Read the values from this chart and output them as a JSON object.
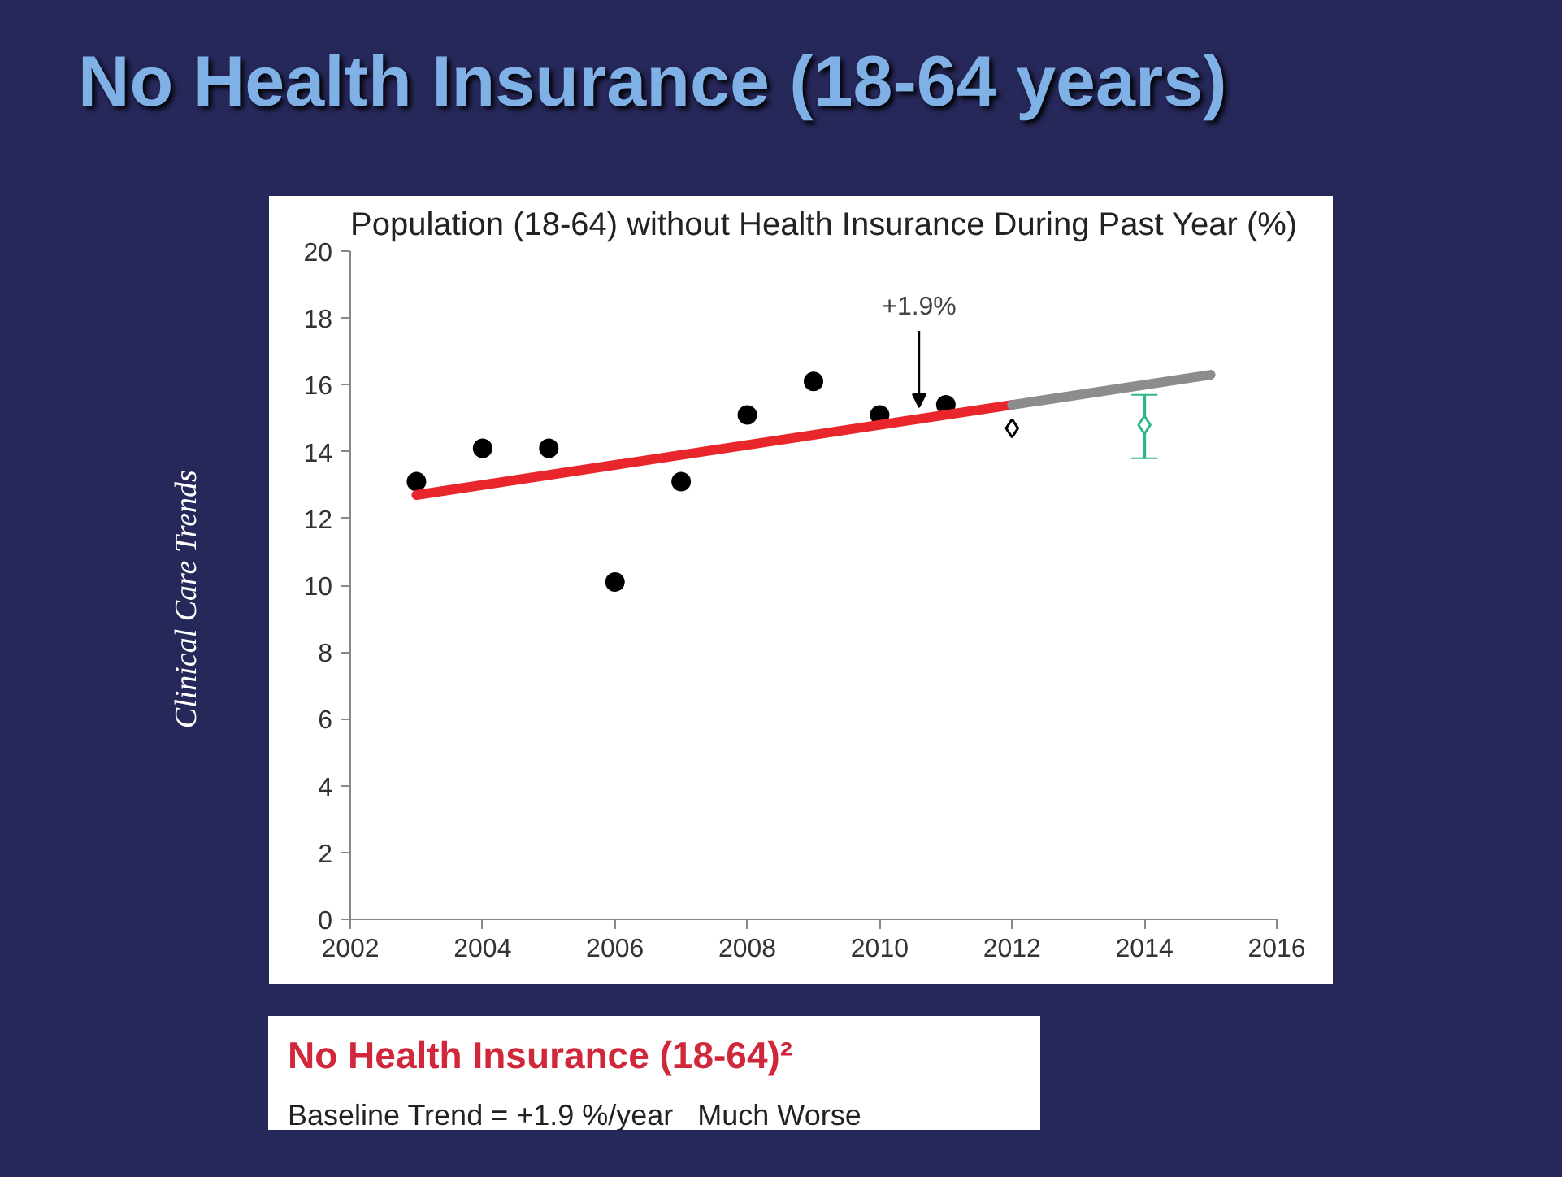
{
  "chart_data": {
    "type": "scatter",
    "title": "No Health Insurance (18-64 years)",
    "subtitle": "Population (18-64) without Health Insurance During Past Year (%)",
    "xlim": [
      2002,
      2016
    ],
    "xticks": [
      2002,
      2004,
      2006,
      2008,
      2010,
      2012,
      2014,
      2016
    ],
    "ylim": [
      0,
      20
    ],
    "yticks": [
      0,
      2,
      4,
      6,
      8,
      10,
      12,
      14,
      16,
      18,
      20
    ],
    "grid": false,
    "series": [
      {
        "marker": "circle",
        "color": "#000000",
        "x": [
          2003,
          2004,
          2005,
          2006,
          2007,
          2008,
          2009,
          2010,
          2011
        ],
        "values": [
          13.1,
          14.1,
          14.1,
          10.1,
          13.1,
          15.1,
          16.1,
          15.1,
          15.4
        ]
      },
      {
        "type": "line",
        "color": "#e8262b",
        "x": [
          2003,
          2012
        ],
        "values": [
          12.7,
          15.4
        ]
      },
      {
        "type": "line",
        "color": "#8c8c8c",
        "x": [
          2012,
          2015
        ],
        "values": [
          15.4,
          16.3
        ]
      },
      {
        "marker": "diamond",
        "color": "#000000",
        "x": [
          2012
        ],
        "values": [
          14.7
        ]
      },
      {
        "marker": "diamond",
        "color": "#2db58a",
        "x": [
          2014
        ],
        "values": [
          14.8
        ],
        "errors": [
          [
            13.8,
            15.7
          ]
        ]
      }
    ],
    "annotations": [
      "+1.9%",
      "Clinical Care Trends",
      "No Health Insurance (18-64)²",
      "Baseline Trend = +1.9 %/year",
      "Much Worse"
    ]
  }
}
